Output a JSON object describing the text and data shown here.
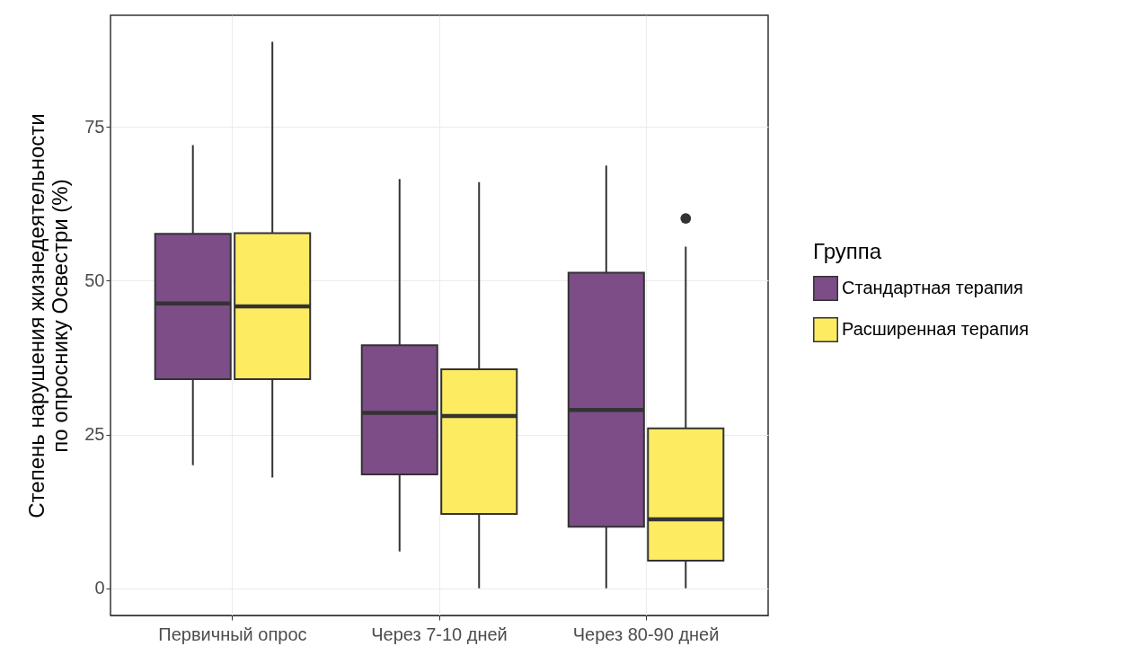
{
  "chart_data": {
    "type": "box",
    "ylabel": "Степень нарушения жизнедеятельности\nпо опроснику Освестри (%)",
    "legend_title": "Группа",
    "categories": [
      "Первичный опрос",
      "Через 7-10 дней",
      "Через 80-90 дней"
    ],
    "series": [
      {
        "name": "Стандартная терапия",
        "color": "#7c4d87",
        "boxes": [
          {
            "low": 20,
            "q1": 34,
            "median": 46.3,
            "q3": 57.6,
            "high": 72
          },
          {
            "low": 6,
            "q1": 18.5,
            "median": 28.5,
            "q3": 39.5,
            "high": 66.5
          },
          {
            "low": 0,
            "q1": 10,
            "median": 29,
            "q3": 51.3,
            "high": 68.7
          }
        ]
      },
      {
        "name": "Расширенная терапия",
        "color": "#fdeb62",
        "boxes": [
          {
            "low": 18,
            "q1": 34,
            "median": 45.8,
            "q3": 57.7,
            "high": 88.8
          },
          {
            "low": 0,
            "q1": 12.1,
            "median": 28,
            "q3": 35.6,
            "high": 66
          },
          {
            "low": 0,
            "q1": 4.5,
            "median": 11.2,
            "q3": 26,
            "high": 55.5,
            "outliers": [
              60.1
            ]
          }
        ]
      }
    ],
    "ylim": [
      -4.4,
      93.1
    ],
    "yticks": [
      0,
      25,
      50,
      75
    ],
    "grid": true,
    "legend": "right"
  }
}
